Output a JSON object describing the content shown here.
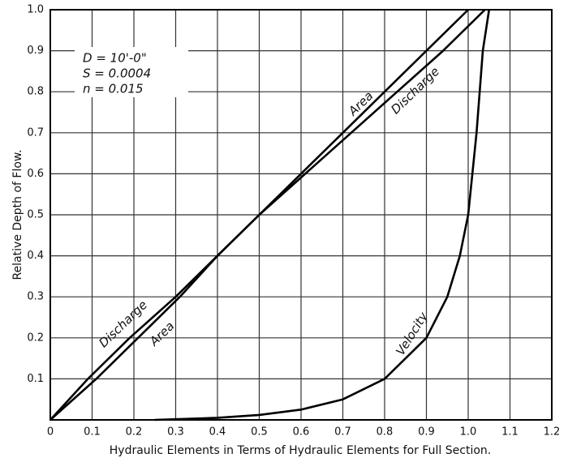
{
  "chart_data": {
    "type": "line",
    "x_label": "Hydraulic Elements in Terms of Hydraulic Elements for Full Section.",
    "y_label": "Relative Depth of Flow.",
    "xlim": [
      0,
      1.2
    ],
    "ylim": [
      0,
      1
    ],
    "xticks": [
      0,
      0.1,
      0.2,
      0.3,
      0.4,
      0.5,
      0.6,
      0.7,
      0.8,
      0.9,
      {
        "value": 1,
        "label": "1.0"
      },
      1.1,
      1.2
    ],
    "yticks": [
      0.1,
      0.2,
      0.3,
      0.4,
      0.5,
      0.6,
      0.7,
      0.8,
      0.9,
      {
        "value": 1,
        "label": "1.0"
      }
    ],
    "grid": true,
    "series": [
      {
        "name": "Area",
        "color": "#000000",
        "x": [
          0,
          0.11,
          0.21,
          0.31,
          0.4,
          0.5,
          0.6,
          0.7,
          0.8,
          0.9,
          1.0
        ],
        "values": [
          0,
          0.1,
          0.2,
          0.3,
          0.4,
          0.5,
          0.6,
          0.7,
          0.8,
          0.9,
          1.0
        ]
      },
      {
        "name": "Discharge",
        "color": "#000000",
        "x": [
          0,
          0.09,
          0.19,
          0.3,
          0.4,
          0.5,
          0.61,
          0.72,
          0.83,
          0.94,
          1.04
        ],
        "values": [
          0,
          0.1,
          0.2,
          0.3,
          0.4,
          0.5,
          0.6,
          0.7,
          0.8,
          0.9,
          1.0
        ]
      },
      {
        "name": "Velocity",
        "color": "#000000",
        "x": [
          0.25,
          0.4,
          0.5,
          0.6,
          0.7,
          0.8,
          0.9,
          0.95,
          0.98,
          1.0,
          1.02,
          1.035,
          1.05
        ],
        "values": [
          0,
          0.005,
          0.012,
          0.025,
          0.05,
          0.1,
          0.2,
          0.3,
          0.4,
          0.5,
          0.7,
          0.9,
          1.0
        ]
      }
    ],
    "annotations": [
      {
        "text": "D = 10'-0\""
      },
      {
        "text": "S = 0.0004"
      },
      {
        "text": "n = 0.015"
      },
      {
        "text": "Discharge"
      },
      {
        "text": "Area"
      }
    ]
  }
}
